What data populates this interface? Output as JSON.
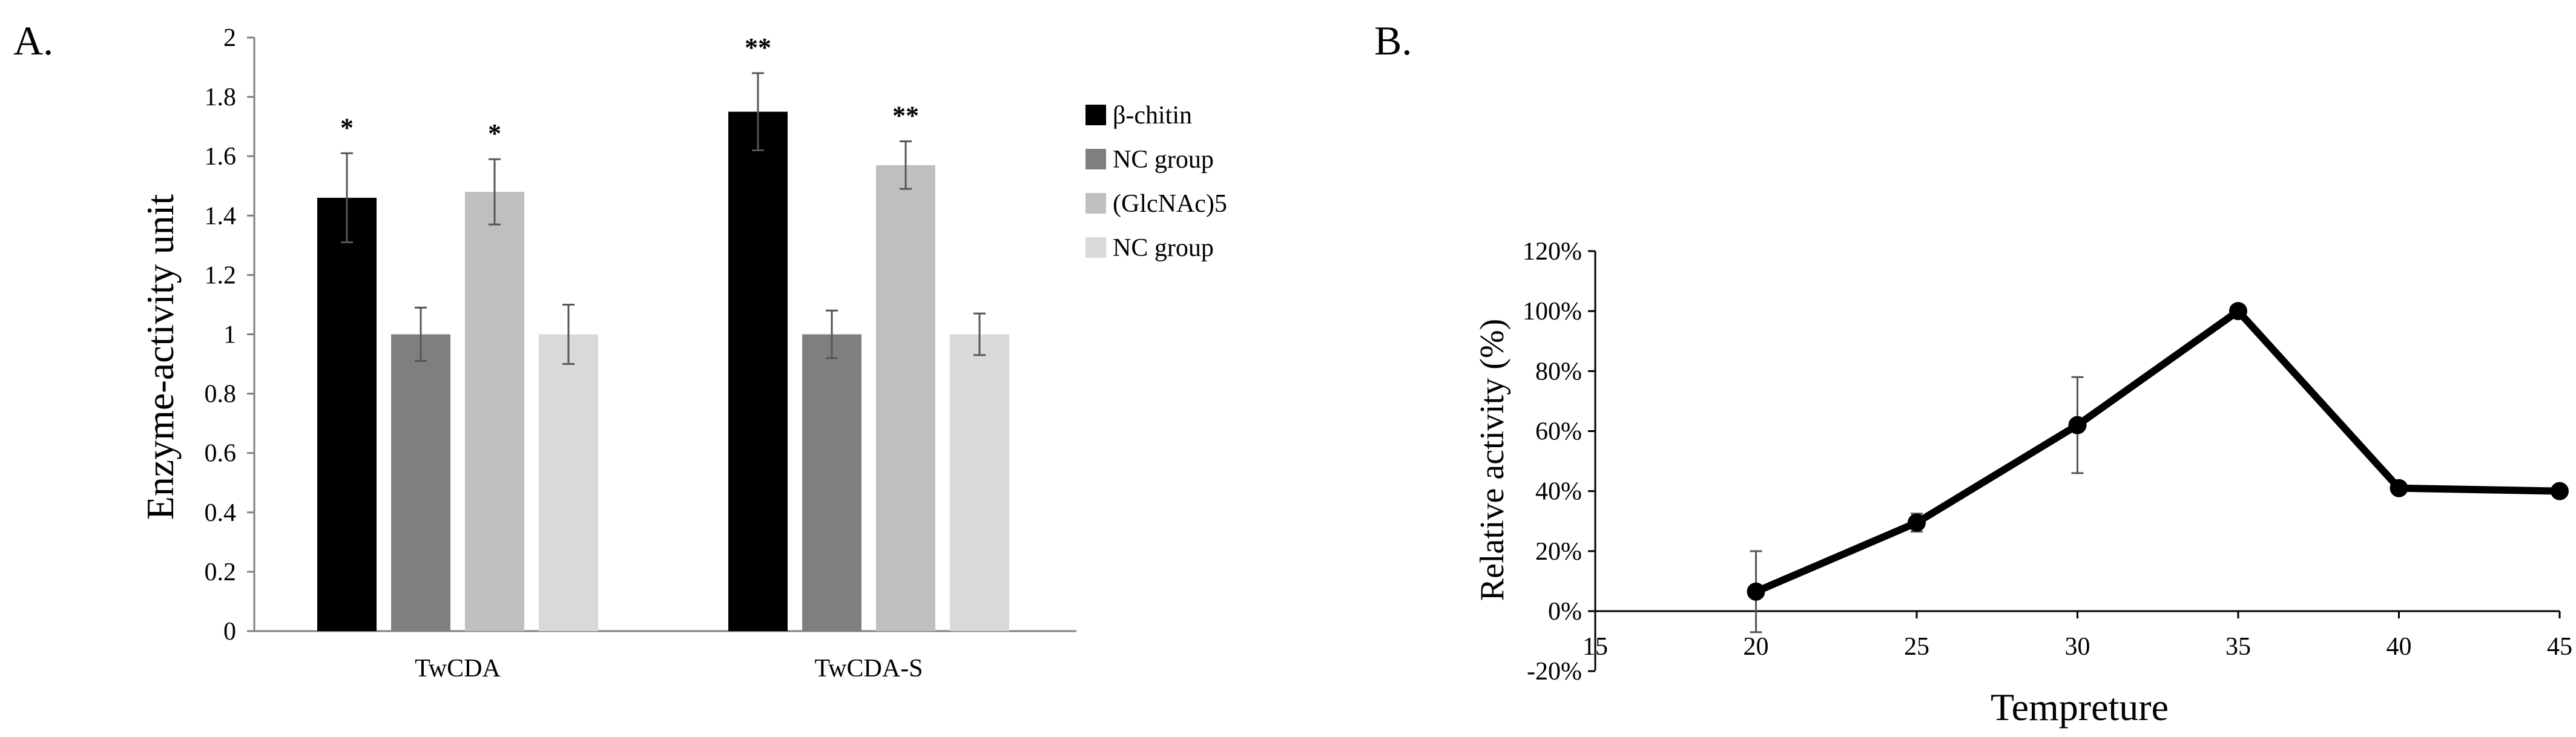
{
  "chart_data": [
    {
      "panel": "A.",
      "type": "bar",
      "ylabel": "Enzyme-activity unit",
      "xlabel": "",
      "ylim": [
        0,
        2
      ],
      "yticks": [
        "0",
        "0.2",
        "0.4",
        "0.6",
        "0.8",
        "1",
        "1.2",
        "1.4",
        "1.6",
        "1.8",
        "2"
      ],
      "categories": [
        "TwCDA",
        "TwCDA-S"
      ],
      "legend_position": "right",
      "series": [
        {
          "name": "β-chitin",
          "color": "#000000",
          "values": [
            1.46,
            1.75
          ],
          "errors": [
            0.15,
            0.13
          ],
          "annotations": [
            "*",
            "**"
          ]
        },
        {
          "name": "NC group",
          "color": "#7f7f7f",
          "values": [
            1.0,
            1.0
          ],
          "errors": [
            0.09,
            0.08
          ],
          "annotations": [
            "",
            ""
          ]
        },
        {
          "name": "(GlcNAc)5",
          "color": "#bfbfbf",
          "values": [
            1.48,
            1.57
          ],
          "errors": [
            0.11,
            0.08
          ],
          "annotations": [
            "*",
            "**"
          ]
        },
        {
          "name": "NC group",
          "color": "#d9d9d9",
          "values": [
            1.0,
            1.0
          ],
          "errors": [
            0.1,
            0.07
          ],
          "annotations": [
            "",
            ""
          ]
        }
      ]
    },
    {
      "panel": "B.",
      "type": "line",
      "ylabel": "Relative activity (%)",
      "xlabel": "Tempreture",
      "xlim": [
        15,
        45
      ],
      "ylim": [
        -20,
        120
      ],
      "xticks": [
        "15",
        "20",
        "25",
        "30",
        "35",
        "40",
        "45"
      ],
      "yticks": [
        "-20%",
        "0%",
        "20%",
        "40%",
        "60%",
        "80%",
        "100%",
        "120%"
      ],
      "series": [
        {
          "name": "Relative activity",
          "x": [
            20,
            25,
            30,
            35,
            40,
            45
          ],
          "y": [
            6.5,
            29.5,
            62,
            100,
            41,
            40
          ],
          "errors": [
            13.5,
            3,
            16,
            0,
            0,
            0
          ]
        }
      ]
    }
  ]
}
